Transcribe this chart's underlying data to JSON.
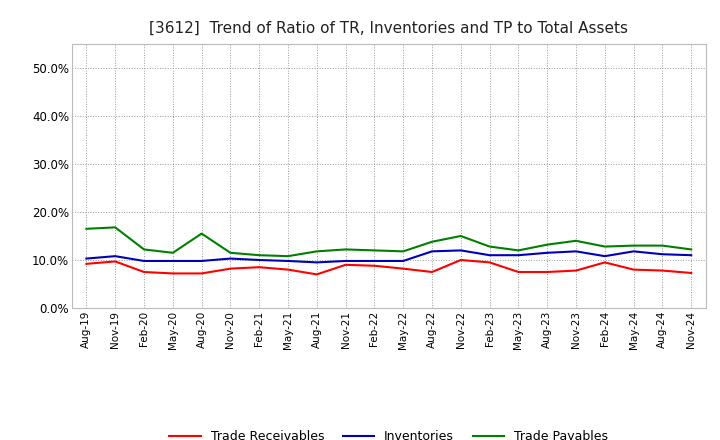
{
  "title": "[3612]  Trend of Ratio of TR, Inventories and TP to Total Assets",
  "x_labels": [
    "Aug-19",
    "Nov-19",
    "Feb-20",
    "May-20",
    "Aug-20",
    "Nov-20",
    "Feb-21",
    "May-21",
    "Aug-21",
    "Nov-21",
    "Feb-22",
    "May-22",
    "Aug-22",
    "Nov-22",
    "Feb-23",
    "May-23",
    "Aug-23",
    "Nov-23",
    "Feb-24",
    "May-24",
    "Aug-24",
    "Nov-24"
  ],
  "trade_receivables": [
    0.092,
    0.097,
    0.075,
    0.072,
    0.072,
    0.082,
    0.085,
    0.08,
    0.07,
    0.09,
    0.088,
    0.082,
    0.075,
    0.1,
    0.095,
    0.075,
    0.075,
    0.078,
    0.095,
    0.08,
    0.078,
    0.073
  ],
  "inventories": [
    0.103,
    0.108,
    0.098,
    0.098,
    0.098,
    0.103,
    0.1,
    0.098,
    0.095,
    0.098,
    0.098,
    0.098,
    0.118,
    0.12,
    0.11,
    0.11,
    0.115,
    0.118,
    0.108,
    0.118,
    0.112,
    0.11
  ],
  "trade_payables": [
    0.165,
    0.168,
    0.122,
    0.115,
    0.155,
    0.115,
    0.11,
    0.108,
    0.118,
    0.122,
    0.12,
    0.118,
    0.138,
    0.15,
    0.128,
    0.12,
    0.132,
    0.14,
    0.128,
    0.13,
    0.13,
    0.122
  ],
  "tr_color": "#ff0000",
  "inv_color": "#0000bb",
  "tp_color": "#008000",
  "ylim": [
    0.0,
    0.55
  ],
  "yticks": [
    0.0,
    0.1,
    0.2,
    0.3,
    0.4,
    0.5
  ],
  "background_color": "#ffffff",
  "grid_color": "#999999",
  "legend_labels": [
    "Trade Receivables",
    "Inventories",
    "Trade Payables"
  ]
}
